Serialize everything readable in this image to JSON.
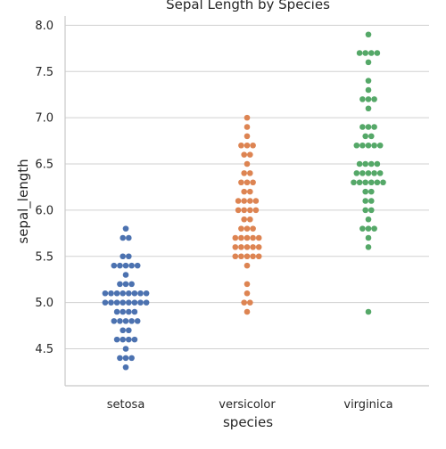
{
  "chart_data": {
    "type": "scatter",
    "subtype": "swarm",
    "title": "Sepal Length by Species",
    "xlabel": "species",
    "ylabel": "sepal_length",
    "categories": [
      "setosa",
      "versicolor",
      "virginica"
    ],
    "ylim": [
      4.1,
      8.1
    ],
    "yticks": [
      4.5,
      5.0,
      5.5,
      6.0,
      6.5,
      7.0,
      7.5,
      8.0
    ],
    "ytick_labels": [
      "4.5",
      "5.0",
      "5.5",
      "6.0",
      "6.5",
      "7.0",
      "7.5",
      "8.0"
    ],
    "grid": "horizontal",
    "legend": "none",
    "series": [
      {
        "category": "setosa",
        "color": "#4c72b0",
        "values": [
          4.3,
          4.4,
          4.4,
          4.4,
          4.5,
          4.6,
          4.6,
          4.6,
          4.6,
          4.7,
          4.7,
          4.8,
          4.8,
          4.8,
          4.8,
          4.8,
          4.9,
          4.9,
          4.9,
          4.9,
          5.0,
          5.0,
          5.0,
          5.0,
          5.0,
          5.0,
          5.0,
          5.0,
          5.1,
          5.1,
          5.1,
          5.1,
          5.1,
          5.1,
          5.1,
          5.1,
          5.2,
          5.2,
          5.2,
          5.3,
          5.4,
          5.4,
          5.4,
          5.4,
          5.4,
          5.5,
          5.5,
          5.7,
          5.7,
          5.8
        ]
      },
      {
        "category": "versicolor",
        "color": "#dd8452",
        "values": [
          4.9,
          5.0,
          5.0,
          5.1,
          5.2,
          5.4,
          5.5,
          5.5,
          5.5,
          5.5,
          5.5,
          5.6,
          5.6,
          5.6,
          5.6,
          5.6,
          5.7,
          5.7,
          5.7,
          5.7,
          5.7,
          5.8,
          5.8,
          5.8,
          5.9,
          5.9,
          6.0,
          6.0,
          6.0,
          6.0,
          6.1,
          6.1,
          6.1,
          6.1,
          6.2,
          6.2,
          6.3,
          6.3,
          6.3,
          6.4,
          6.4,
          6.5,
          6.6,
          6.6,
          6.7,
          6.7,
          6.7,
          6.8,
          6.9,
          7.0
        ]
      },
      {
        "category": "virginica",
        "color": "#55a868",
        "values": [
          4.9,
          5.6,
          5.7,
          5.8,
          5.8,
          5.8,
          5.9,
          6.0,
          6.0,
          6.1,
          6.1,
          6.2,
          6.2,
          6.3,
          6.3,
          6.3,
          6.3,
          6.3,
          6.3,
          6.4,
          6.4,
          6.4,
          6.4,
          6.4,
          6.5,
          6.5,
          6.5,
          6.5,
          6.7,
          6.7,
          6.7,
          6.7,
          6.7,
          6.8,
          6.8,
          6.9,
          6.9,
          6.9,
          7.1,
          7.2,
          7.2,
          7.2,
          7.3,
          7.4,
          7.6,
          7.7,
          7.7,
          7.7,
          7.7,
          7.9
        ]
      }
    ]
  }
}
